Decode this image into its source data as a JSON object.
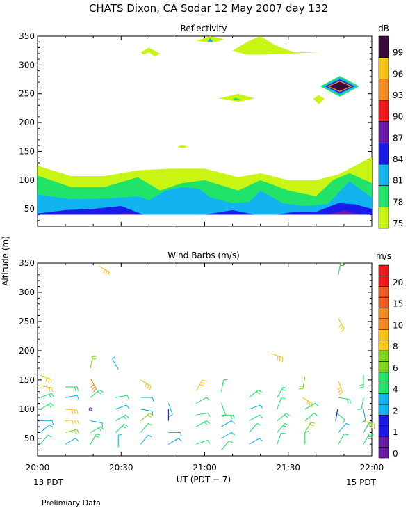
{
  "title": "CHATS Dixon, CA  Sodar  12 May 2007  day 132",
  "y_axis_label": "Altitude  (m)",
  "x_axis_label": "UT  (PDT − 7)",
  "left_footer": "13 PDT",
  "right_footer": "15 PDT",
  "note": "Prelimiary Data",
  "chart_data": [
    {
      "type": "heatmap",
      "title": "Reflectivity",
      "x_ticks": [
        "20:00",
        "20:30",
        "21:00",
        "21:30",
        "22:00"
      ],
      "x_range_minutes": [
        0,
        120
      ],
      "ylim": [
        20,
        350
      ],
      "y_ticks": [
        50,
        100,
        150,
        200,
        250,
        300,
        350
      ],
      "colorbar": {
        "unit": "dB",
        "levels": [
          75,
          78,
          81,
          84,
          87,
          90,
          93,
          96,
          99
        ],
        "colors": [
          "#c8f514",
          "#22e36a",
          "#12b4f0",
          "#1a1aea",
          "#6a1aa8",
          "#f01818",
          "#f58a1e",
          "#f8c419",
          "#3a0a3a"
        ]
      },
      "bands": [
        {
          "level": 75,
          "x": [
            0,
            12,
            24,
            36,
            48,
            60,
            72,
            80,
            90,
            100,
            108,
            114,
            120
          ],
          "top": [
            125,
            107,
            107,
            117,
            120,
            120,
            105,
            112,
            100,
            100,
            110,
            125,
            140
          ],
          "bottom": [
            40,
            40,
            40,
            40,
            40,
            40,
            40,
            40,
            40,
            40,
            40,
            40,
            40
          ]
        },
        {
          "level": 78,
          "x": [
            0,
            12,
            24,
            36,
            44,
            52,
            60,
            72,
            80,
            90,
            100,
            106,
            112,
            120
          ],
          "top": [
            108,
            88,
            88,
            105,
            82,
            95,
            100,
            82,
            100,
            82,
            72,
            100,
            112,
            95
          ],
          "bottom": [
            40,
            40,
            40,
            40,
            40,
            40,
            40,
            40,
            40,
            40,
            40,
            40,
            40,
            40
          ]
        },
        {
          "level": 81,
          "x": [
            0,
            12,
            24,
            36,
            40,
            46,
            52,
            58,
            62,
            70,
            76,
            80,
            88,
            96,
            104,
            112,
            120
          ],
          "top": [
            75,
            67,
            68,
            72,
            65,
            82,
            88,
            85,
            70,
            60,
            62,
            82,
            60,
            55,
            58,
            98,
            70
          ],
          "bottom": [
            40,
            40,
            40,
            40,
            40,
            40,
            40,
            40,
            40,
            40,
            40,
            40,
            40,
            40,
            40,
            40,
            40
          ]
        },
        {
          "level": 84,
          "x": [
            0,
            10,
            20,
            30,
            38,
            60,
            70,
            78,
            86,
            92,
            100,
            108,
            114,
            120
          ],
          "top": [
            42,
            48,
            50,
            55,
            40,
            40,
            48,
            40,
            40,
            45,
            45,
            60,
            58,
            50
          ],
          "bottom": [
            40,
            40,
            40,
            40,
            40,
            40,
            40,
            40,
            40,
            40,
            40,
            40,
            40,
            40
          ]
        },
        {
          "level": 87,
          "x": [
            28,
            32,
            36,
            104,
            110,
            116
          ],
          "top": [
            40,
            43,
            40,
            40,
            47,
            40
          ],
          "bottom": [
            40,
            40,
            40,
            40,
            40,
            40
          ]
        }
      ],
      "patches": [
        {
          "level": 75,
          "x": [
            37,
            40,
            44,
            42,
            40,
            38
          ],
          "y": [
            322,
            330,
            320,
            315,
            322,
            318
          ]
        },
        {
          "level": 75,
          "x": [
            57,
            62,
            67,
            64,
            60
          ],
          "y": [
            342,
            350,
            345,
            340,
            340
          ]
        },
        {
          "level": 81,
          "x": [
            61,
            62,
            63
          ],
          "y": [
            340,
            347,
            340
          ]
        },
        {
          "level": 75,
          "x": [
            70,
            76,
            80,
            85,
            92,
            102,
            92,
            80,
            75
          ],
          "y": [
            325,
            342,
            350,
            335,
            322,
            322,
            320,
            318,
            318
          ]
        },
        {
          "level": 75,
          "x": [
            65,
            72,
            78,
            72
          ],
          "y": [
            242,
            250,
            242,
            236
          ]
        },
        {
          "level": 78,
          "x": [
            70,
            71,
            73
          ],
          "y": [
            240,
            243,
            240
          ]
        },
        {
          "level": 75,
          "x": [
            99,
            101,
            103,
            101
          ],
          "y": [
            241,
            248,
            241,
            232
          ]
        },
        {
          "level": 75,
          "x": [
            50,
            52,
            54,
            52
          ],
          "y": [
            158,
            161,
            158,
            156
          ]
        }
      ],
      "diamond": {
        "center_x": 108.5,
        "center_y": 263,
        "layers": [
          {
            "level": 78,
            "half_width_min": 7,
            "half_height": 18
          },
          {
            "level": 81,
            "half_width_min": 6,
            "half_height": 15
          },
          {
            "level": 84,
            "half_width_min": 5.2,
            "half_height": 12
          },
          {
            "level": 93,
            "half_width_min": 4.5,
            "half_height": 10
          },
          {
            "level": 99,
            "half_width_min": 3.8,
            "half_height": 8
          }
        ]
      }
    },
    {
      "type": "scatter",
      "title": "Wind Barbs (m/s)",
      "x_ticks": [
        "20:00",
        "20:30",
        "21:00",
        "21:30",
        "22:00"
      ],
      "x_range_minutes": [
        0,
        120
      ],
      "ylim": [
        20,
        350
      ],
      "y_ticks": [
        50,
        100,
        150,
        200,
        250,
        300,
        350
      ],
      "colorbar": {
        "unit": "m/s",
        "labels": [
          0,
          1,
          2,
          4,
          6,
          8,
          10,
          15,
          20
        ],
        "colors": [
          "#6a1aa8",
          "#1a1aea",
          "#12b4f0",
          "#22e36a",
          "#7ed61a",
          "#f8c419",
          "#f5891e",
          "#f05a1e",
          "#f01818"
        ],
        "bands_per_label": 2
      },
      "barbs": [
        {
          "t": 1,
          "z": 158,
          "speed": 9,
          "dir": 110
        },
        {
          "t": 1,
          "z": 140,
          "speed": 9,
          "dir": 100
        },
        {
          "t": 1,
          "z": 120,
          "speed": 5,
          "dir": 70
        },
        {
          "t": 1,
          "z": 100,
          "speed": 5,
          "dir": 60
        },
        {
          "t": 1,
          "z": 80,
          "speed": 3,
          "dir": 90
        },
        {
          "t": 1,
          "z": 60,
          "speed": 2,
          "dir": 50
        },
        {
          "t": 1,
          "z": 40,
          "speed": 4,
          "dir": 40
        },
        {
          "t": 10,
          "z": 138,
          "speed": 5,
          "dir": 90
        },
        {
          "t": 10,
          "z": 120,
          "speed": 3,
          "dir": 80
        },
        {
          "t": 10,
          "z": 100,
          "speed": 9,
          "dir": 95
        },
        {
          "t": 10,
          "z": 80,
          "speed": 9,
          "dir": 85
        },
        {
          "t": 10,
          "z": 60,
          "speed": 6,
          "dir": 75
        },
        {
          "t": 10,
          "z": 40,
          "speed": 3,
          "dir": 60
        },
        {
          "t": 22,
          "z": 345,
          "speed": 9,
          "dir": 120
        },
        {
          "t": 19,
          "z": 170,
          "speed": 6,
          "dir": 10
        },
        {
          "t": 19,
          "z": 152,
          "speed": 10,
          "dir": 150
        },
        {
          "t": 19,
          "z": 120,
          "speed": 5,
          "dir": 50
        },
        {
          "t": 19,
          "z": 100,
          "speed": 0,
          "dir": 140
        },
        {
          "t": 19,
          "z": 80,
          "speed": 3,
          "dir": 100
        },
        {
          "t": 19,
          "z": 60,
          "speed": 5,
          "dir": 60
        },
        {
          "t": 19,
          "z": 40,
          "speed": 5,
          "dir": 30
        },
        {
          "t": 29,
          "z": 168,
          "speed": 3,
          "dir": 330
        },
        {
          "t": 28,
          "z": 120,
          "speed": 4,
          "dir": 80
        },
        {
          "t": 28,
          "z": 100,
          "speed": 3,
          "dir": 70
        },
        {
          "t": 28,
          "z": 80,
          "speed": 5,
          "dir": 60
        },
        {
          "t": 28,
          "z": 60,
          "speed": 5,
          "dir": 45
        },
        {
          "t": 29,
          "z": 35,
          "speed": 3,
          "dir": 0
        },
        {
          "t": 37,
          "z": 150,
          "speed": 9,
          "dir": 120
        },
        {
          "t": 37,
          "z": 120,
          "speed": 3,
          "dir": 90
        },
        {
          "t": 37,
          "z": 100,
          "speed": 3,
          "dir": 100
        },
        {
          "t": 37,
          "z": 80,
          "speed": 6,
          "dir": 50
        },
        {
          "t": 37,
          "z": 60,
          "speed": 4,
          "dir": 40
        },
        {
          "t": 37,
          "z": 40,
          "speed": 3,
          "dir": 40
        },
        {
          "t": 47,
          "z": 110,
          "speed": 2,
          "dir": 160
        },
        {
          "t": 47,
          "z": 80,
          "speed": 1,
          "dir": 0
        },
        {
          "t": 47,
          "z": 60,
          "speed": 3,
          "dir": 90
        },
        {
          "t": 47,
          "z": 40,
          "speed": 3,
          "dir": 60
        },
        {
          "t": 57,
          "z": 132,
          "speed": 8,
          "dir": 30
        },
        {
          "t": 57,
          "z": 110,
          "speed": 4,
          "dir": 60
        },
        {
          "t": 57,
          "z": 90,
          "speed": 4,
          "dir": 80
        },
        {
          "t": 57,
          "z": 70,
          "speed": 5,
          "dir": 60
        },
        {
          "t": 57,
          "z": 40,
          "speed": 4,
          "dir": 70
        },
        {
          "t": 66,
          "z": 130,
          "speed": 4,
          "dir": 10
        },
        {
          "t": 66,
          "z": 110,
          "speed": 4,
          "dir": 160
        },
        {
          "t": 66,
          "z": 90,
          "speed": 5,
          "dir": 90
        },
        {
          "t": 66,
          "z": 70,
          "speed": 3,
          "dir": 60
        },
        {
          "t": 66,
          "z": 50,
          "speed": 3,
          "dir": 60
        },
        {
          "t": 66,
          "z": 30,
          "speed": 4,
          "dir": 40
        },
        {
          "t": 76,
          "z": 120,
          "speed": 5,
          "dir": 50
        },
        {
          "t": 76,
          "z": 100,
          "speed": 3,
          "dir": 70
        },
        {
          "t": 76,
          "z": 80,
          "speed": 4,
          "dir": 60
        },
        {
          "t": 76,
          "z": 60,
          "speed": 4,
          "dir": 40
        },
        {
          "t": 76,
          "z": 40,
          "speed": 3,
          "dir": 60
        },
        {
          "t": 84,
          "z": 195,
          "speed": 9,
          "dir": 110
        },
        {
          "t": 86,
          "z": 120,
          "speed": 5,
          "dir": 30
        },
        {
          "t": 86,
          "z": 100,
          "speed": 4,
          "dir": 20
        },
        {
          "t": 86,
          "z": 80,
          "speed": 5,
          "dir": 50
        },
        {
          "t": 86,
          "z": 60,
          "speed": 5,
          "dir": 40
        },
        {
          "t": 86,
          "z": 40,
          "speed": 4,
          "dir": 20
        },
        {
          "t": 96,
          "z": 155,
          "speed": 6,
          "dir": 190
        },
        {
          "t": 95,
          "z": 120,
          "speed": 9,
          "dir": 120
        },
        {
          "t": 96,
          "z": 100,
          "speed": 4,
          "dir": 60
        },
        {
          "t": 96,
          "z": 80,
          "speed": 4,
          "dir": 50
        },
        {
          "t": 96,
          "z": 60,
          "speed": 6,
          "dir": 30
        },
        {
          "t": 96,
          "z": 40,
          "speed": 4,
          "dir": 0
        },
        {
          "t": 108,
          "z": 330,
          "speed": 5,
          "dir": 10
        },
        {
          "t": 108,
          "z": 255,
          "speed": 9,
          "dir": 150
        },
        {
          "t": 108,
          "z": 148,
          "speed": 9,
          "dir": 160
        },
        {
          "t": 108,
          "z": 120,
          "speed": 5,
          "dir": 100
        },
        {
          "t": 107,
          "z": 95,
          "speed": 4,
          "dir": 130
        },
        {
          "t": 107,
          "z": 80,
          "speed": 1,
          "dir": 10
        },
        {
          "t": 108,
          "z": 60,
          "speed": 3,
          "dir": 40
        },
        {
          "t": 108,
          "z": 40,
          "speed": 4,
          "dir": 30
        },
        {
          "t": 117,
          "z": 158,
          "speed": 5,
          "dir": 180
        },
        {
          "t": 117,
          "z": 120,
          "speed": 4,
          "dir": 190
        },
        {
          "t": 117,
          "z": 100,
          "speed": 3,
          "dir": 170
        },
        {
          "t": 117,
          "z": 80,
          "speed": 9,
          "dir": 110
        },
        {
          "t": 117,
          "z": 60,
          "speed": 5,
          "dir": 30
        },
        {
          "t": 117,
          "z": 40,
          "speed": 5,
          "dir": 30
        }
      ]
    }
  ]
}
